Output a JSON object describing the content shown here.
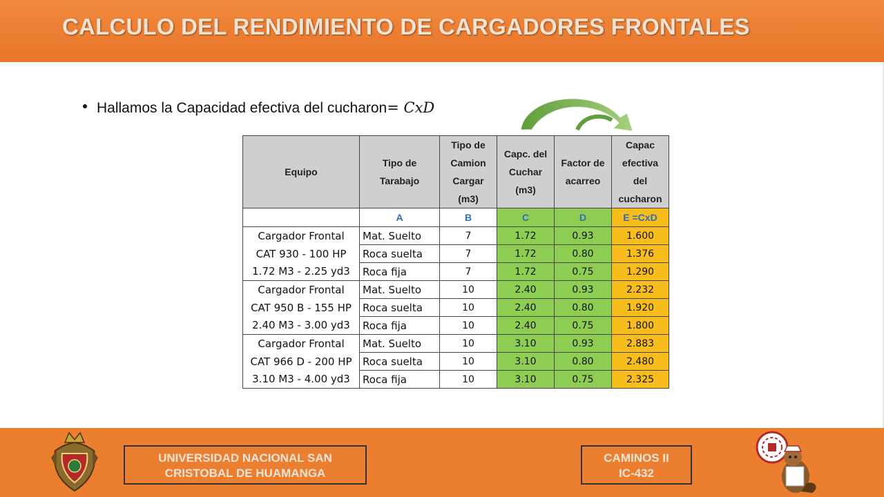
{
  "header": {
    "title": "CALCULO DEL RENDIMIENTO DE CARGADORES FRONTALES"
  },
  "bullet": {
    "text": "Hallamos la Capacidad efectiva del cucharon",
    "formula": "= CxD"
  },
  "table": {
    "headers": [
      "Equipo",
      "Tipo de Tarabajo",
      "Tipo de Camion Cargar (m3)",
      "Capc. del Cuchar (m3)",
      "Factor de acarreo",
      "Capac efectiva del cucharon"
    ],
    "letters": [
      "",
      "A",
      "B",
      "C",
      "D",
      "E =CxD"
    ],
    "groups": [
      {
        "equipo": [
          "Cargador Frontal",
          "CAT 930 - 100 HP",
          "1.72 M3 - 2.25 yd3"
        ],
        "rows": [
          [
            "Mat. Suelto",
            "7",
            "1.72",
            "0.93",
            "1.600"
          ],
          [
            "Roca suelta",
            "7",
            "1.72",
            "0.80",
            "1.376"
          ],
          [
            "Roca fija",
            "7",
            "1.72",
            "0.75",
            "1.290"
          ]
        ]
      },
      {
        "equipo": [
          "Cargador Frontal",
          "CAT 950 B - 155 HP",
          "2.40 M3 - 3.00 yd3"
        ],
        "rows": [
          [
            "Mat. Suelto",
            "10",
            "2.40",
            "0.93",
            "2.232"
          ],
          [
            "Roca suelta",
            "10",
            "2.40",
            "0.80",
            "1.920"
          ],
          [
            "Roca fija",
            "10",
            "2.40",
            "0.75",
            "1.800"
          ]
        ]
      },
      {
        "equipo": [
          "Cargador Frontal",
          "CAT 966 D - 200 HP",
          "3.10 M3 - 4.00 yd3"
        ],
        "rows": [
          [
            "Mat. Suelto",
            "10",
            "3.10",
            "0.93",
            "2.883"
          ],
          [
            "Roca suelta",
            "10",
            "3.10",
            "0.80",
            "2.480"
          ],
          [
            "Roca fija",
            "10",
            "3.10",
            "0.75",
            "2.325"
          ]
        ]
      }
    ]
  },
  "footer": {
    "university_line1": "UNIVERSIDAD NACIONAL SAN",
    "university_line2": "CRISTOBAL DE HUAMANGA",
    "course_line1": "CAMINOS II",
    "course_line2": "IC-432"
  },
  "colors": {
    "header": "#ef8236",
    "footer": "#ec7e30",
    "green_cells": "#8dce52",
    "orange_cells": "#f7bd1d",
    "header_cells": "#cfcfcf"
  },
  "icons": {
    "left_logo": "university-crest-icon",
    "right_logo": "engineering-mascot-icon",
    "arrow": "curved-arrow-icon"
  }
}
